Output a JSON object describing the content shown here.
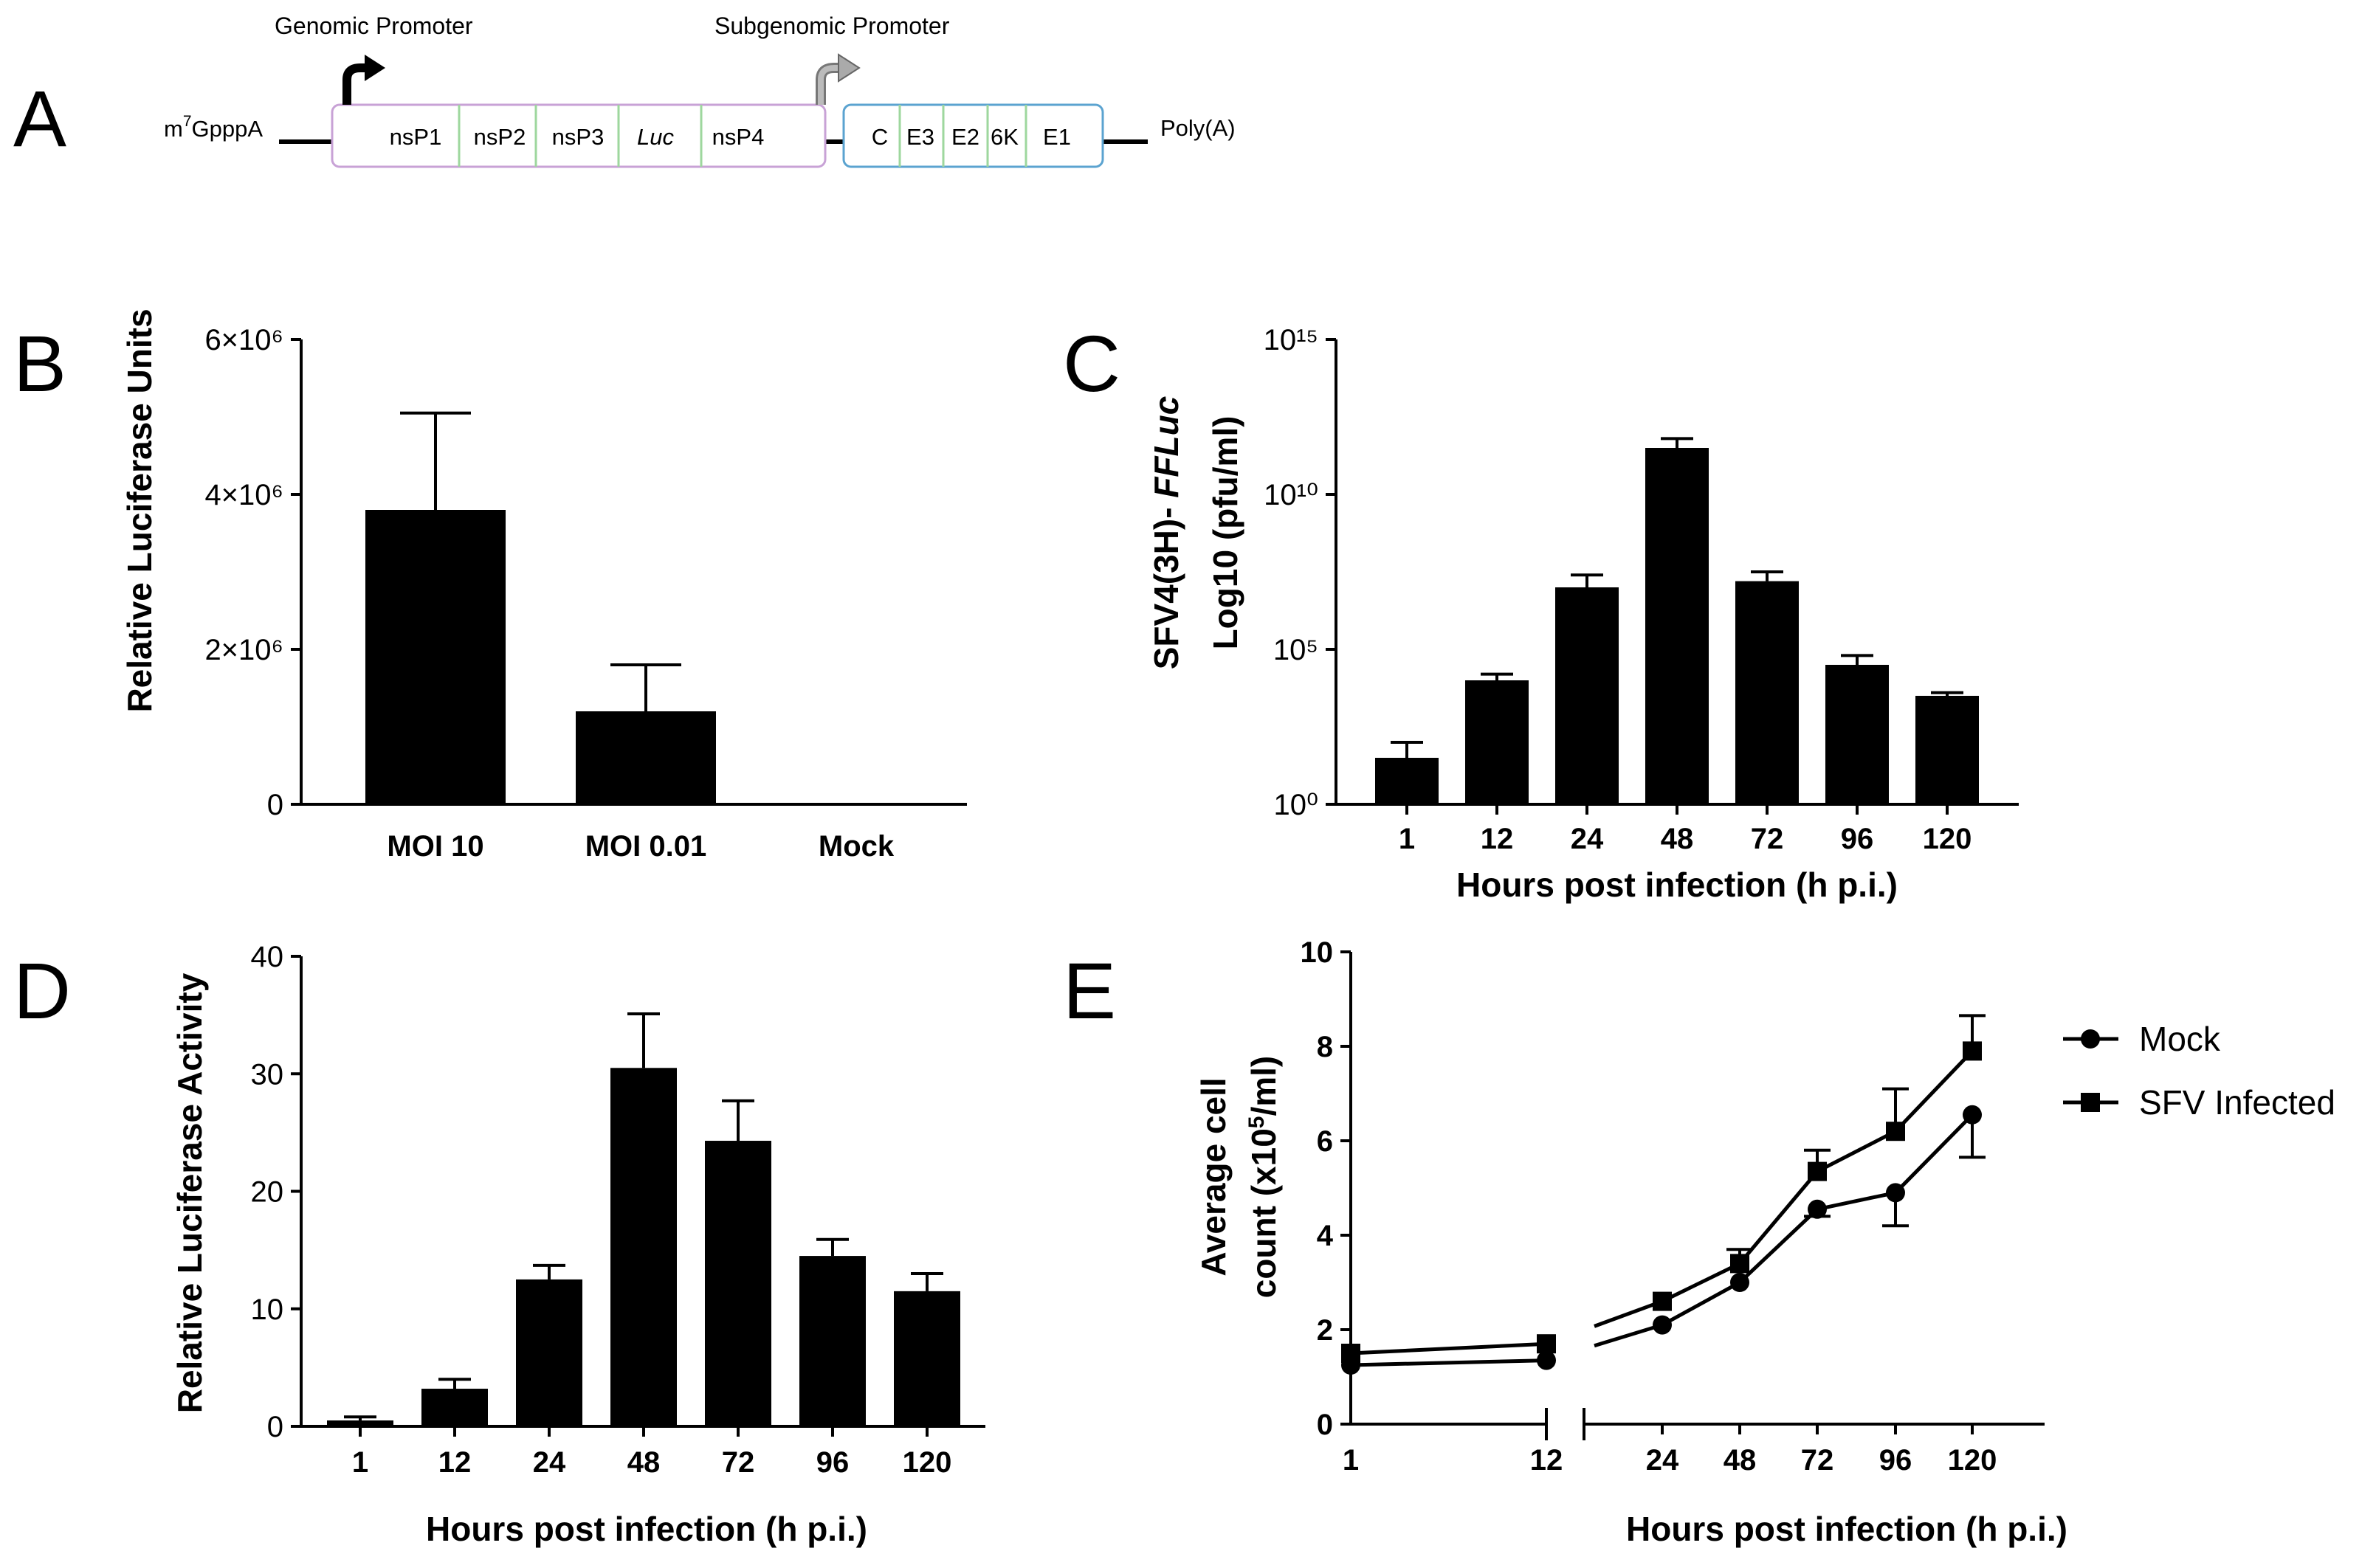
{
  "panels": {
    "A": {
      "letter": "A",
      "cap": "m7GpppA",
      "cap_main": "m",
      "cap_sup": "7",
      "cap_rest": "GpppA",
      "genomic_promoter": "Genomic Promoter",
      "subgenomic_promoter": "Subgenomic Promoter",
      "polyA": "Poly(A)",
      "nonstructural_genes": [
        "nsP1",
        "nsP2",
        "nsP3",
        "Luc",
        "nsP4"
      ],
      "structural_genes": [
        "C",
        "E3",
        "E2",
        "6K",
        "E1"
      ],
      "colors": {
        "nonstructural_box": "#c8a2d6",
        "structural_box": "#5ba3d0",
        "divider": "#9ed79e",
        "promoter_arrow_sub": "#999999"
      }
    },
    "B": {
      "letter": "B"
    },
    "C": {
      "letter": "C"
    },
    "D": {
      "letter": "D"
    },
    "E": {
      "letter": "E"
    }
  },
  "chart_data": [
    {
      "panel": "B",
      "type": "bar",
      "categories": [
        "MOI 10",
        "MOI 0.01",
        "Mock"
      ],
      "values": [
        3800000,
        1200000,
        0
      ],
      "errors": [
        1250000,
        600000,
        0
      ],
      "ylabel": "Relative Luciferase Units",
      "ylim": [
        0,
        6000000
      ],
      "yticks": [
        0,
        2000000,
        4000000,
        6000000
      ],
      "ytick_labels": [
        "0",
        "2×10⁶",
        "4×10⁶",
        "6×10⁶"
      ]
    },
    {
      "panel": "C",
      "type": "bar",
      "yscale": "log",
      "categories": [
        "1",
        "12",
        "24",
        "48",
        "72",
        "96",
        "120"
      ],
      "log10_values": [
        1.5,
        4.0,
        7.0,
        11.5,
        7.2,
        4.5,
        3.5
      ],
      "log10_errors": [
        0.5,
        0.2,
        0.4,
        0.3,
        0.3,
        0.3,
        0.1
      ],
      "ylabel_line1": "SFV4(3H)- ",
      "ylabel_italic": "FFLuc",
      "ylabel_line2": "Log10 (pfu/ml)",
      "xlabel": "Hours post infection (h p.i.)",
      "ylim_log10": [
        0,
        15
      ],
      "yticks_log10": [
        0,
        5,
        10,
        15
      ],
      "ytick_labels": [
        "10⁰",
        "10⁵",
        "10¹⁰",
        "10¹⁵"
      ]
    },
    {
      "panel": "D",
      "type": "bar",
      "categories": [
        "1",
        "12",
        "24",
        "48",
        "72",
        "96",
        "120"
      ],
      "values": [
        0.5,
        3.2,
        12.5,
        30.5,
        24.3,
        14.5,
        11.5
      ],
      "errors": [
        0.3,
        0.8,
        1.2,
        4.6,
        3.4,
        1.4,
        1.5
      ],
      "ylabel": "Relative Luciferase Activity",
      "xlabel": "Hours post infection (h p.i.)",
      "ylim": [
        0,
        40
      ],
      "yticks": [
        0,
        10,
        20,
        30,
        40
      ],
      "ytick_labels": [
        "0",
        "10",
        "20",
        "30",
        "40"
      ]
    },
    {
      "panel": "E",
      "type": "line",
      "x_left_segment": [
        "1",
        "12"
      ],
      "x_right_segment": [
        "24",
        "48",
        "72",
        "96",
        "120"
      ],
      "x": [
        "1",
        "12",
        "24",
        "48",
        "72",
        "96",
        "120"
      ],
      "series": [
        {
          "name": "Mock",
          "marker": "circle",
          "values": [
            1.25,
            1.35,
            2.1,
            3.0,
            4.55,
            4.9,
            6.55
          ],
          "errors": [
            0,
            0,
            0,
            0,
            0.15,
            0.7,
            0.9
          ]
        },
        {
          "name": "SFV Infected",
          "marker": "square",
          "values": [
            1.5,
            1.7,
            2.6,
            3.4,
            5.35,
            6.2,
            7.9
          ],
          "errors": [
            0,
            0,
            0,
            0.3,
            0.45,
            0.9,
            0.75
          ]
        }
      ],
      "ylabel_line1": "Average cell",
      "ylabel_line2_pre": "count (x10",
      "ylabel_line2_sup": "5",
      "ylabel_line2_post": "/ml)",
      "xlabel": "Hours post infection (h p.i.)",
      "ylim": [
        0,
        10
      ],
      "yticks": [
        0,
        2,
        4,
        6,
        8,
        10
      ],
      "ytick_labels": [
        "0",
        "2",
        "4",
        "6",
        "8",
        "10"
      ]
    }
  ]
}
